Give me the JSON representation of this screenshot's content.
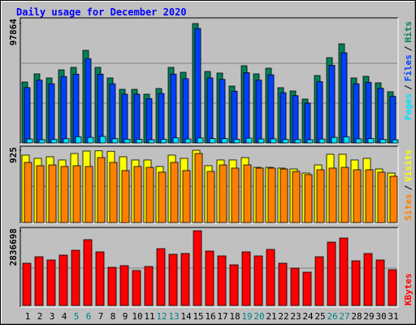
{
  "legend_separator": "/",
  "chart_data": [
    {
      "type": "bar",
      "title": "Daily usage for December 2020",
      "ylim": [
        0,
        97864
      ],
      "yticks": [
        97864
      ],
      "grid_divisions": 3,
      "series": [
        {
          "name": "Hits",
          "color": "#00805c",
          "values": [
            49950,
            56610,
            53280,
            59940,
            61940,
            75920,
            61940,
            53280,
            43960,
            43960,
            39960,
            44620,
            61940,
            57940,
            97864,
            58610,
            57280,
            46620,
            63270,
            56610,
            61270,
            45290,
            42620,
            35960,
            55280,
            69930,
            81250,
            53280,
            54610,
            49280,
            41960
          ]
        },
        {
          "name": "Files",
          "color": "#0040ff",
          "values": [
            45400,
            51500,
            48500,
            54500,
            56400,
            69100,
            56400,
            48500,
            40000,
            40000,
            36400,
            40600,
            56400,
            52700,
            93800,
            53300,
            52100,
            42400,
            57600,
            51500,
            55800,
            41200,
            38800,
            32700,
            50300,
            63600,
            73900,
            48500,
            49700,
            44800,
            38200
          ]
        },
        {
          "name": "Pages",
          "color": "#00e0ff",
          "values": [
            3300,
            2700,
            2900,
            3500,
            5100,
            4600,
            5400,
            3500,
            3100,
            3000,
            2700,
            3000,
            4200,
            3300,
            4100,
            3600,
            3600,
            3000,
            4000,
            3300,
            3400,
            2900,
            2800,
            2700,
            3200,
            4600,
            5100,
            3400,
            3600,
            2900,
            2600
          ]
        }
      ]
    },
    {
      "type": "bar",
      "ylim": [
        0,
        925
      ],
      "yticks": [
        925
      ],
      "grid_divisions": 2,
      "series": [
        {
          "name": "Visits",
          "color": "#ffff00",
          "values": [
            863,
            822,
            842,
            801,
            884,
            915,
            918,
            912,
            842,
            801,
            801,
            718,
            863,
            822,
            925,
            728,
            801,
            801,
            832,
            707,
            707,
            697,
            686,
            634,
            738,
            874,
            874,
            801,
            822,
            686,
            634
          ]
        },
        {
          "name": "Sites",
          "color": "#ff8000",
          "values": [
            770,
            728,
            738,
            718,
            728,
            718,
            832,
            770,
            666,
            718,
            707,
            645,
            770,
            666,
            884,
            655,
            738,
            697,
            738,
            697,
            697,
            686,
            655,
            614,
            676,
            697,
            707,
            676,
            676,
            645,
            593
          ]
        }
      ]
    },
    {
      "type": "bar",
      "ylim": [
        0,
        2836698
      ],
      "yticks": [
        2836698
      ],
      "grid_divisions": 2,
      "categories": [
        "1",
        "2",
        "3",
        "4",
        "5",
        "6",
        "7",
        "8",
        "9",
        "10",
        "11",
        "12",
        "13",
        "14",
        "15",
        "16",
        "17",
        "18",
        "19",
        "20",
        "21",
        "22",
        "23",
        "24",
        "25",
        "26",
        "27",
        "28",
        "29",
        "30",
        "31"
      ],
      "category_colors": [
        "#000000",
        "#000000",
        "#000000",
        "#000000",
        "#008080",
        "#008080",
        "#000000",
        "#000000",
        "#000000",
        "#000000",
        "#000000",
        "#008080",
        "#008080",
        "#000000",
        "#000000",
        "#000000",
        "#000000",
        "#000000",
        "#008080",
        "#008080",
        "#000000",
        "#000000",
        "#000000",
        "#000000",
        "#000000",
        "#008080",
        "#008080",
        "#000000",
        "#000000",
        "#000000",
        "#000000"
      ],
      "series": [
        {
          "name": "KBytes",
          "color": "#ff0000",
          "values": [
            1603000,
            1850000,
            1727000,
            1912000,
            2097000,
            2498000,
            2035000,
            1449000,
            1511000,
            1326000,
            1480000,
            2158000,
            1943000,
            1973000,
            2836698,
            2066000,
            1881000,
            1542000,
            2035000,
            1881000,
            2128000,
            1603000,
            1418000,
            1264000,
            1850000,
            2405000,
            2559000,
            1696000,
            1973000,
            1727000,
            1357000
          ]
        }
      ]
    }
  ]
}
